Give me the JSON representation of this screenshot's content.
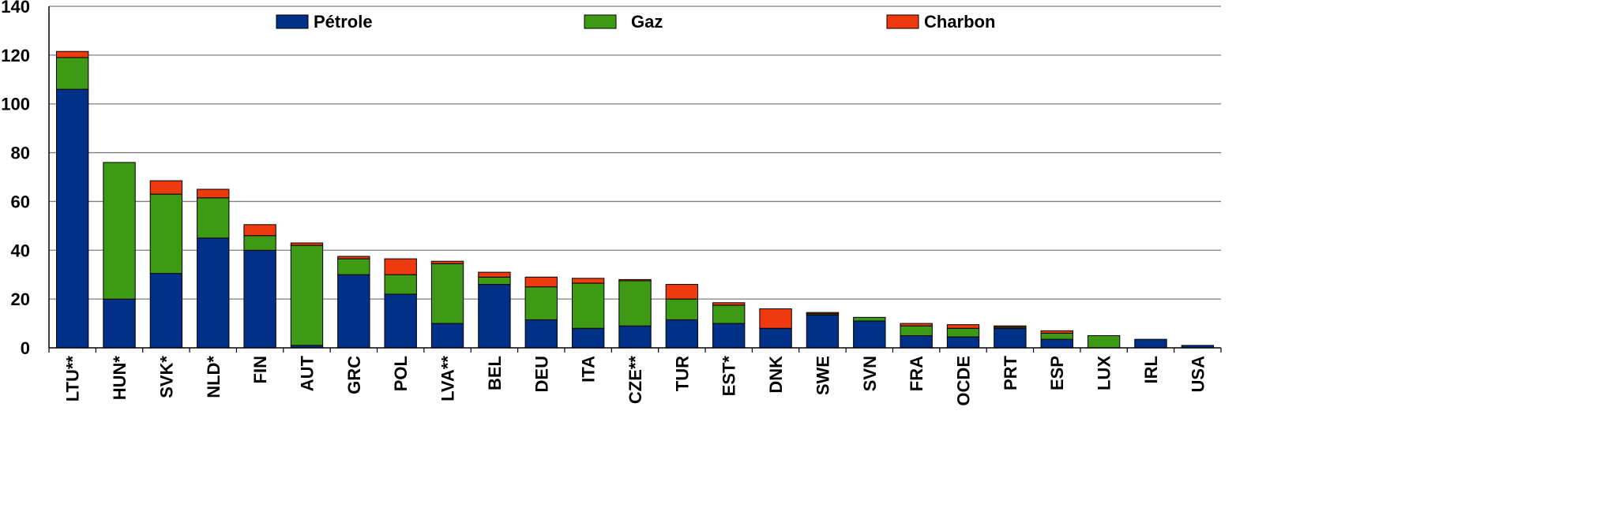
{
  "chart_data": {
    "type": "bar",
    "stacked": true,
    "title": "",
    "xlabel": "",
    "ylabel": "",
    "ylim": [
      0,
      140
    ],
    "yticks": [
      "0",
      "20",
      "40",
      "60",
      "80",
      "100",
      "120",
      "140"
    ],
    "grid": true,
    "legend_position": "top",
    "categories": [
      "LTU**",
      "HUN*",
      "SVK*",
      "NLD*",
      "FIN",
      "AUT",
      "GRC",
      "POL",
      "LVA**",
      "BEL",
      "DEU",
      "ITA",
      "CZE**",
      "TUR",
      "EST*",
      "DNK",
      "SWE",
      "SVN",
      "FRA",
      "OCDE",
      "PRT",
      "ESP",
      "LUX",
      "IRL",
      "USA"
    ],
    "series": [
      {
        "name": "Pétrole",
        "color": "#003087",
        "values": [
          106,
          20,
          30.5,
          45,
          40,
          1,
          30,
          22,
          10,
          26,
          11.5,
          8,
          9,
          11.5,
          10,
          8,
          13.5,
          11,
          5,
          4.5,
          8,
          3.5,
          0,
          3.5,
          1
        ]
      },
      {
        "name": "Gaz",
        "color": "#3e9a15",
        "values": [
          13,
          56,
          32.5,
          16.5,
          6,
          41,
          6.5,
          8,
          24.5,
          3,
          13.5,
          18.5,
          18.5,
          8.5,
          7.5,
          0,
          0.5,
          1.5,
          4,
          3.5,
          0.5,
          2.5,
          5,
          0,
          0
        ]
      },
      {
        "name": "Charbon",
        "color": "#ee3a0e",
        "values": [
          2.5,
          0,
          5.5,
          3.5,
          4.5,
          1,
          1,
          6.5,
          1,
          2,
          4,
          2,
          0.5,
          6,
          1,
          8,
          0.5,
          0,
          1,
          1.5,
          0.5,
          1,
          0,
          0,
          0
        ]
      }
    ]
  }
}
